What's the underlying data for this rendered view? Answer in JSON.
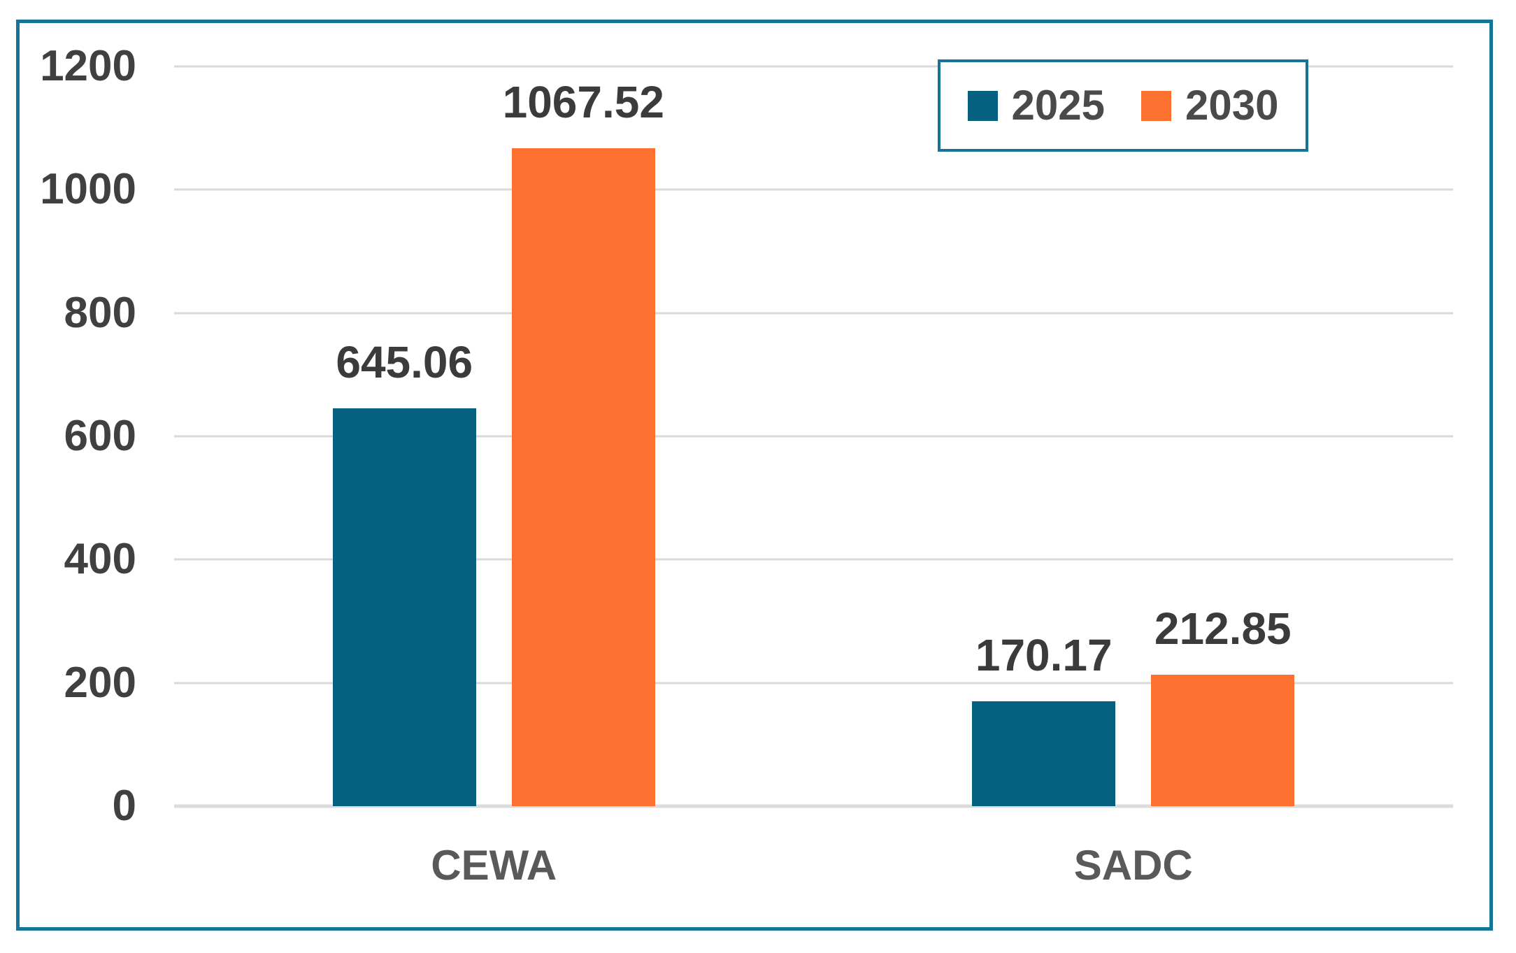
{
  "chart_data": {
    "type": "bar",
    "title": "",
    "categories": [
      "CEWA",
      "SADC"
    ],
    "series": [
      {
        "name": "2025",
        "color": "#05617F",
        "values": [
          645.06,
          170.17
        ],
        "labels": [
          "645.06",
          "170.17"
        ]
      },
      {
        "name": "2030",
        "color": "#FC7030",
        "values": [
          1067.52,
          212.85
        ],
        "labels": [
          "1067.52",
          "212.85"
        ]
      }
    ],
    "ylim": [
      0,
      1200
    ],
    "yticks": [
      1200,
      1000,
      800,
      600,
      400,
      200,
      0
    ],
    "grid": true,
    "legend_position": "top-right"
  },
  "colors": {
    "frame_border": "#16749A",
    "legend_border": "#16749A",
    "gridline": "#D9D9D9",
    "axis_line": "#DCDCDC",
    "tick_text": "#404040",
    "data_label_text": "#3B3B3B",
    "category_text": "#595959",
    "legend_text": "#4A4A4A",
    "background": "#FFFFFF"
  }
}
